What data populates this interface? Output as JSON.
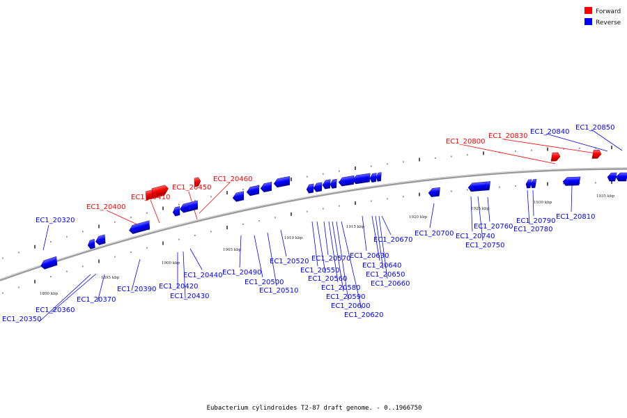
{
  "colors": {
    "forward": "#ff0000",
    "reverse": "#0000ff",
    "axis": "#8a8a8a"
  },
  "legend": [
    {
      "label": "Forward",
      "strand": "forward"
    },
    {
      "label": "Reverse",
      "strand": "reverse"
    }
  ],
  "caption": "Eubacterium cylindroides T2-87 draft genome. - 0..1966750",
  "scale_labels": [
    "1890 kbp",
    "1895 kbp",
    "1900 kbp",
    "1905 kbp",
    "1910 kbp",
    "1915 kbp",
    "1920 kbp",
    "1925 kbp",
    "1930 kbp",
    "1935 kbp"
  ],
  "genes": [
    {
      "id": "EC1_20320",
      "strand": "reverse"
    },
    {
      "id": "EC1_20350",
      "strand": "reverse"
    },
    {
      "id": "EC1_20360",
      "strand": "reverse"
    },
    {
      "id": "EC1_20370",
      "strand": "reverse"
    },
    {
      "id": "EC1_20390",
      "strand": "reverse"
    },
    {
      "id": "EC1_20400",
      "strand": "forward"
    },
    {
      "id": "EC1_20410",
      "strand": "forward"
    },
    {
      "id": "EC1_20420",
      "strand": "reverse"
    },
    {
      "id": "EC1_20430",
      "strand": "reverse"
    },
    {
      "id": "EC1_20440",
      "strand": "reverse"
    },
    {
      "id": "EC1_20450",
      "strand": "forward"
    },
    {
      "id": "EC1_20460",
      "strand": "forward"
    },
    {
      "id": "EC1_20490",
      "strand": "reverse"
    },
    {
      "id": "EC1_20500",
      "strand": "reverse"
    },
    {
      "id": "EC1_20510",
      "strand": "reverse"
    },
    {
      "id": "EC1_20520",
      "strand": "reverse"
    },
    {
      "id": "EC1_20550",
      "strand": "reverse"
    },
    {
      "id": "EC1_20560",
      "strand": "reverse"
    },
    {
      "id": "EC1_20570",
      "strand": "reverse"
    },
    {
      "id": "EC1_20580",
      "strand": "reverse"
    },
    {
      "id": "EC1_20590",
      "strand": "reverse"
    },
    {
      "id": "EC1_20600",
      "strand": "reverse"
    },
    {
      "id": "EC1_20620",
      "strand": "reverse"
    },
    {
      "id": "EC1_20630",
      "strand": "reverse"
    },
    {
      "id": "EC1_20640",
      "strand": "reverse"
    },
    {
      "id": "EC1_20650",
      "strand": "reverse"
    },
    {
      "id": "EC1_20660",
      "strand": "reverse"
    },
    {
      "id": "EC1_20670",
      "strand": "reverse"
    },
    {
      "id": "EC1_20700",
      "strand": "reverse"
    },
    {
      "id": "EC1_20740",
      "strand": "reverse"
    },
    {
      "id": "EC1_20750",
      "strand": "reverse"
    },
    {
      "id": "EC1_20760",
      "strand": "reverse"
    },
    {
      "id": "EC1_20780",
      "strand": "reverse"
    },
    {
      "id": "EC1_20790",
      "strand": "reverse"
    },
    {
      "id": "EC1_20800",
      "strand": "forward"
    },
    {
      "id": "EC1_20810",
      "strand": "reverse"
    },
    {
      "id": "EC1_20830",
      "strand": "forward"
    },
    {
      "id": "EC1_20840",
      "strand": "reverse"
    },
    {
      "id": "EC1_20850",
      "strand": "reverse"
    }
  ]
}
